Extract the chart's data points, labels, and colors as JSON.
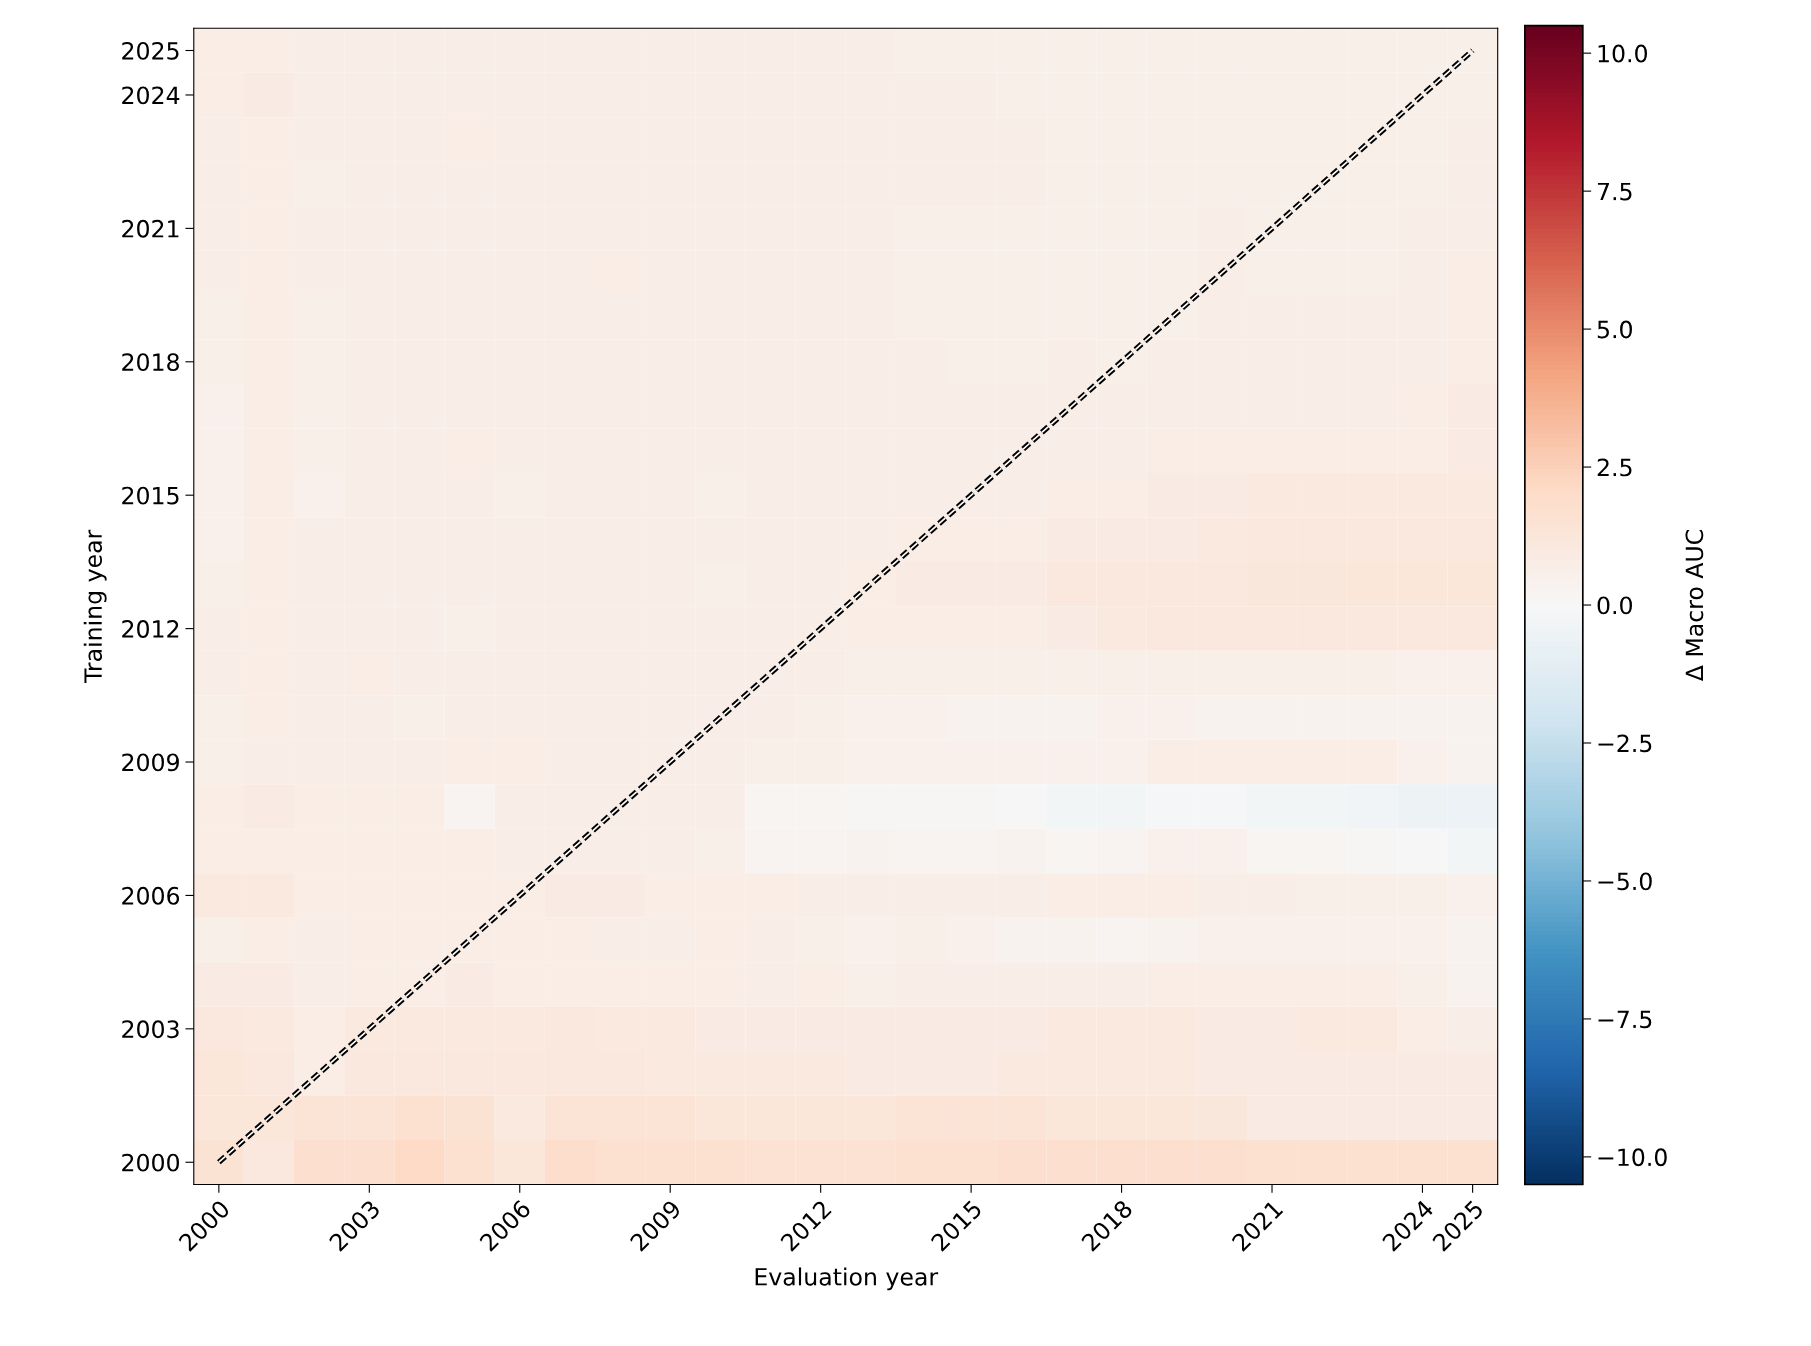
{
  "chart_data": {
    "type": "heatmap",
    "xlabel": "Evaluation year",
    "ylabel": "Training year",
    "clabel": "Δ Macro AUC",
    "xlim": [
      1999.5,
      2025.5
    ],
    "ylim": [
      1999.5,
      2025.5
    ],
    "xticks": [
      2000,
      2003,
      2006,
      2009,
      2012,
      2015,
      2018,
      2021,
      2024,
      2025
    ],
    "yticks": [
      2000,
      2003,
      2006,
      2009,
      2012,
      2015,
      2018,
      2021,
      2024,
      2025
    ],
    "cells": [
      [
        0.8,
        0.8,
        0.7,
        0.7,
        0.7,
        0.7,
        0.7,
        0.7,
        0.7,
        0.7,
        0.7,
        0.7,
        0.7,
        0.7,
        0.6,
        0.6,
        0.6,
        0.6,
        0.6,
        0.6,
        0.6,
        0.6,
        0.6,
        0.6,
        0.6,
        0.6
      ],
      [
        0.8,
        0.9,
        0.7,
        0.7,
        0.7,
        0.7,
        0.7,
        0.7,
        0.7,
        0.7,
        0.7,
        0.7,
        0.7,
        0.7,
        0.7,
        0.7,
        0.6,
        0.6,
        0.6,
        0.6,
        0.6,
        0.6,
        0.6,
        0.6,
        0.6,
        0.6
      ],
      [
        0.7,
        0.8,
        0.7,
        0.7,
        0.7,
        0.8,
        0.7,
        0.7,
        0.7,
        0.7,
        0.7,
        0.7,
        0.7,
        0.7,
        0.7,
        0.7,
        0.7,
        0.6,
        0.6,
        0.6,
        0.6,
        0.6,
        0.6,
        0.6,
        0.6,
        0.7
      ],
      [
        0.7,
        0.8,
        0.6,
        0.7,
        0.7,
        0.7,
        0.7,
        0.7,
        0.7,
        0.7,
        0.7,
        0.7,
        0.7,
        0.7,
        0.7,
        0.7,
        0.7,
        0.6,
        0.6,
        0.6,
        0.6,
        0.6,
        0.6,
        0.6,
        0.6,
        0.7
      ],
      [
        0.7,
        0.8,
        0.7,
        0.7,
        0.7,
        0.7,
        0.7,
        0.7,
        0.7,
        0.7,
        0.7,
        0.7,
        0.7,
        0.7,
        0.6,
        0.6,
        0.6,
        0.6,
        0.6,
        0.6,
        0.7,
        0.6,
        0.6,
        0.6,
        0.7,
        0.7
      ],
      [
        0.7,
        0.8,
        0.7,
        0.7,
        0.7,
        0.7,
        0.7,
        0.7,
        0.8,
        0.7,
        0.7,
        0.7,
        0.7,
        0.7,
        0.6,
        0.6,
        0.6,
        0.6,
        0.6,
        0.6,
        0.7,
        0.6,
        0.6,
        0.6,
        0.7,
        0.8
      ],
      [
        0.6,
        0.8,
        0.6,
        0.7,
        0.7,
        0.7,
        0.7,
        0.7,
        0.7,
        0.7,
        0.7,
        0.7,
        0.7,
        0.7,
        0.6,
        0.6,
        0.6,
        0.6,
        0.6,
        0.6,
        0.7,
        0.7,
        0.7,
        0.7,
        0.7,
        0.8
      ],
      [
        0.6,
        0.8,
        0.6,
        0.7,
        0.7,
        0.7,
        0.7,
        0.7,
        0.7,
        0.7,
        0.7,
        0.7,
        0.7,
        0.7,
        0.7,
        0.6,
        0.6,
        0.7,
        0.6,
        0.7,
        0.7,
        0.7,
        0.7,
        0.7,
        0.7,
        0.8
      ],
      [
        0.5,
        0.8,
        0.6,
        0.7,
        0.7,
        0.7,
        0.7,
        0.7,
        0.7,
        0.7,
        0.7,
        0.7,
        0.7,
        0.7,
        0.7,
        0.7,
        0.7,
        0.7,
        0.7,
        0.7,
        0.7,
        0.7,
        0.7,
        0.7,
        0.8,
        0.9
      ],
      [
        0.5,
        0.8,
        0.6,
        0.7,
        0.7,
        0.8,
        0.7,
        0.7,
        0.7,
        0.7,
        0.7,
        0.7,
        0.7,
        0.7,
        0.7,
        0.7,
        0.7,
        0.7,
        0.7,
        0.8,
        0.8,
        0.8,
        0.8,
        0.8,
        0.8,
        0.9
      ],
      [
        0.5,
        0.8,
        0.5,
        0.7,
        0.7,
        0.7,
        0.6,
        0.7,
        0.7,
        0.7,
        0.6,
        0.7,
        0.7,
        0.7,
        0.7,
        0.7,
        0.7,
        0.8,
        0.8,
        0.9,
        0.9,
        1.0,
        1.0,
        1.0,
        1.0,
        1.0
      ],
      [
        0.5,
        0.8,
        0.7,
        0.7,
        0.7,
        0.7,
        0.7,
        0.7,
        0.7,
        0.7,
        0.7,
        0.7,
        0.7,
        0.7,
        0.8,
        0.8,
        0.8,
        0.9,
        0.9,
        0.9,
        1.0,
        1.1,
        1.1,
        1.1,
        1.1,
        1.1
      ],
      [
        0.6,
        0.8,
        0.7,
        0.7,
        0.7,
        0.7,
        0.7,
        0.7,
        0.7,
        0.7,
        0.6,
        0.7,
        0.7,
        0.8,
        0.9,
        0.9,
        0.9,
        1.1,
        1.1,
        1.1,
        1.1,
        1.2,
        1.2,
        1.3,
        1.3,
        1.3
      ],
      [
        0.7,
        0.8,
        0.7,
        0.7,
        0.7,
        0.6,
        0.7,
        0.7,
        0.7,
        0.7,
        0.7,
        0.7,
        0.7,
        0.8,
        0.8,
        0.8,
        0.8,
        0.9,
        1.0,
        1.1,
        1.1,
        1.1,
        1.1,
        1.1,
        1.1,
        1.1
      ],
      [
        0.7,
        0.8,
        0.7,
        0.8,
        0.7,
        0.7,
        0.7,
        0.7,
        0.7,
        0.7,
        0.7,
        0.7,
        0.7,
        0.6,
        0.6,
        0.6,
        0.6,
        0.6,
        0.6,
        0.6,
        0.6,
        0.6,
        0.6,
        0.6,
        0.5,
        0.5
      ],
      [
        0.6,
        0.8,
        0.7,
        0.7,
        0.6,
        0.7,
        0.7,
        0.7,
        0.7,
        0.7,
        0.7,
        0.7,
        0.6,
        0.5,
        0.5,
        0.4,
        0.4,
        0.4,
        0.5,
        0.5,
        0.4,
        0.4,
        0.4,
        0.4,
        0.4,
        0.4
      ],
      [
        0.6,
        0.7,
        0.7,
        0.7,
        0.7,
        0.8,
        0.8,
        0.7,
        0.7,
        0.7,
        0.7,
        0.6,
        0.6,
        0.5,
        0.5,
        0.5,
        0.5,
        0.5,
        0.5,
        0.8,
        0.8,
        0.8,
        0.8,
        0.8,
        0.5,
        0.4
      ],
      [
        0.8,
        0.9,
        0.8,
        0.8,
        0.8,
        0.3,
        0.7,
        0.7,
        0.7,
        0.7,
        0.7,
        0.2,
        0.2,
        0.1,
        0.1,
        0.1,
        0.0,
        -0.3,
        -0.3,
        -0.1,
        -0.1,
        -0.3,
        -0.3,
        -0.4,
        -0.5,
        -0.6
      ],
      [
        0.8,
        0.8,
        0.8,
        0.8,
        0.8,
        0.8,
        0.7,
        0.7,
        0.7,
        0.7,
        0.6,
        0.3,
        0.3,
        0.4,
        0.3,
        0.3,
        0.4,
        0.2,
        0.3,
        0.5,
        0.5,
        0.2,
        0.2,
        0.1,
        0.0,
        -0.3
      ],
      [
        1.0,
        1.0,
        0.8,
        0.8,
        0.8,
        0.8,
        0.8,
        0.9,
        0.9,
        0.8,
        0.8,
        0.8,
        0.7,
        0.7,
        0.7,
        0.7,
        0.7,
        0.8,
        0.8,
        0.8,
        0.7,
        0.7,
        0.6,
        0.6,
        0.6,
        0.5
      ],
      [
        0.6,
        0.8,
        0.7,
        0.8,
        0.8,
        0.8,
        0.8,
        0.8,
        0.7,
        0.7,
        0.8,
        0.7,
        0.6,
        0.5,
        0.6,
        0.5,
        0.4,
        0.4,
        0.3,
        0.4,
        0.5,
        0.5,
        0.5,
        0.5,
        0.5,
        0.4
      ],
      [
        0.9,
        0.9,
        0.7,
        0.8,
        0.8,
        0.9,
        0.8,
        0.8,
        0.8,
        0.8,
        0.8,
        0.7,
        0.8,
        0.6,
        0.7,
        0.7,
        0.7,
        0.7,
        0.7,
        0.8,
        0.8,
        0.8,
        0.8,
        0.8,
        0.6,
        0.4
      ],
      [
        1.1,
        1.0,
        0.8,
        1.0,
        1.0,
        1.0,
        1.0,
        1.1,
        1.0,
        1.0,
        0.9,
        0.9,
        0.9,
        0.9,
        0.9,
        0.9,
        0.9,
        1.0,
        1.0,
        1.0,
        0.9,
        0.9,
        1.0,
        1.0,
        0.8,
        0.7
      ],
      [
        1.3,
        1.1,
        0.8,
        1.1,
        1.1,
        1.1,
        1.1,
        1.1,
        1.1,
        1.0,
        1.0,
        1.0,
        1.0,
        0.9,
        0.9,
        0.9,
        1.0,
        1.0,
        1.0,
        1.0,
        0.9,
        0.9,
        0.9,
        0.9,
        0.9,
        0.9
      ],
      [
        1.3,
        1.3,
        1.4,
        1.4,
        1.7,
        1.5,
        1.0,
        1.4,
        1.4,
        1.4,
        1.3,
        1.3,
        1.3,
        1.3,
        1.4,
        1.4,
        1.4,
        1.3,
        1.3,
        1.3,
        1.2,
        0.9,
        0.9,
        0.9,
        0.9,
        0.9
      ],
      [
        1.5,
        1.1,
        1.8,
        1.8,
        2.1,
        1.7,
        1.3,
        1.9,
        1.7,
        1.7,
        1.7,
        1.6,
        1.6,
        1.6,
        1.7,
        1.7,
        1.8,
        1.8,
        1.8,
        1.8,
        1.8,
        1.7,
        1.7,
        1.7,
        1.7,
        1.7
      ]
    ],
    "clim": [
      -10.5,
      10.5
    ],
    "cticks": [
      {
        "value": -10,
        "label": "−10.0"
      },
      {
        "value": -7.5,
        "label": "−7.5"
      },
      {
        "value": -5,
        "label": "−5.0"
      },
      {
        "value": -2.5,
        "label": "−2.5"
      },
      {
        "value": 0,
        "label": "0.0"
      },
      {
        "value": 2.5,
        "label": "2.5"
      },
      {
        "value": 5,
        "label": "5.0"
      },
      {
        "value": 7.5,
        "label": "7.5"
      },
      {
        "value": 10,
        "label": "10.0"
      }
    ],
    "series": [
      {
        "type": "line",
        "line_style": "dashed",
        "color": "#000000",
        "x": [
          2000,
          2025
        ],
        "values": [
          2000,
          2025
        ]
      }
    ]
  }
}
